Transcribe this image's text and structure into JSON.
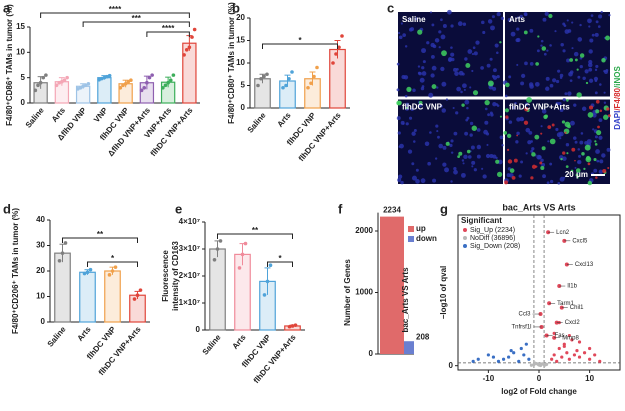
{
  "chart_data": [
    {
      "type": "bar",
      "panel": "a",
      "ylabel": "F4/80⁺CD86⁺ TAMs in tumor (%)",
      "categories": [
        "Saline",
        "Arts",
        "ΔflhD VNP",
        "VNP",
        "flhDC VNP",
        "ΔflhD VNP+Arts",
        "VNP+Arts",
        "flhDC VNP+Arts"
      ],
      "colors": [
        "#7f7f7f",
        "#f4a6b5",
        "#9ec3e6",
        "#4fa3d9",
        "#f0a04b",
        "#8e5fb0",
        "#3cae5a",
        "#e0453a"
      ],
      "values": [
        4,
        4.2,
        3.3,
        5,
        3.8,
        4,
        4.1,
        11.8
      ],
      "errors": [
        1.2,
        0.8,
        0.5,
        0.4,
        0.7,
        1.3,
        1,
        1.5
      ],
      "points": [
        [
          2.5,
          3.5,
          4,
          5,
          5.5
        ],
        [
          3.5,
          4,
          4.2,
          4.5,
          5
        ],
        [
          2.8,
          3,
          3.3,
          3.5,
          3.8
        ],
        [
          4.6,
          4.8,
          5,
          5.2,
          5.4
        ],
        [
          3,
          3.5,
          3.8,
          4.2,
          4.5
        ],
        [
          2.5,
          3,
          4,
          5,
          5.5
        ],
        [
          3,
          3.5,
          4,
          4.5,
          5.5
        ],
        [
          9.5,
          10.5,
          11,
          13,
          14.5
        ]
      ],
      "ylim": [
        0,
        15
      ],
      "yticks": [
        0,
        5,
        10,
        15
      ],
      "annotations": [
        "****",
        "***",
        "****"
      ]
    },
    {
      "type": "bar",
      "panel": "b",
      "ylabel": "F4/80⁺CD80⁺ TAMs in tumor (%)",
      "categories": [
        "Saline",
        "Arts",
        "flhDC VNP",
        "flhDC VNP+Arts"
      ],
      "colors": [
        "#7f7f7f",
        "#4fa3d9",
        "#f0a04b",
        "#e0453a"
      ],
      "values": [
        6.5,
        6,
        6.5,
        13
      ],
      "errors": [
        1,
        1.3,
        1.5,
        2
      ],
      "points": [
        [
          5,
          6.5,
          7,
          7.5
        ],
        [
          4.5,
          5,
          6.5,
          8
        ],
        [
          4.5,
          5.5,
          7,
          9
        ],
        [
          10,
          12,
          13.5,
          16
        ]
      ],
      "ylim": [
        0,
        20
      ],
      "yticks": [
        0,
        5,
        10,
        15,
        20
      ],
      "annotations": [
        "*"
      ]
    },
    {
      "type": "image",
      "panel": "c",
      "images": [
        "Saline",
        "Arts",
        "flhDC VNP",
        "flhDC VNP+Arts"
      ],
      "scale_bar": "20 μm",
      "stain_labels": [
        {
          "text": "DAPI",
          "color": "#3340c8"
        },
        {
          "text": "/F4/80",
          "color": "#d62c2c"
        },
        {
          "text": "/iNOS",
          "color": "#2aa84a"
        }
      ]
    },
    {
      "type": "bar",
      "panel": "d",
      "ylabel": "F4/80⁺CD206⁺ TAMs in tumor (%)",
      "categories": [
        "Saline",
        "Arts",
        "flhDC VNP",
        "flhDC VNP+Arts"
      ],
      "colors": [
        "#7f7f7f",
        "#4fa3d9",
        "#f0a04b",
        "#e0453a"
      ],
      "values": [
        27,
        19.5,
        20,
        10.5
      ],
      "errors": [
        3.5,
        1,
        1.5,
        1.5
      ],
      "points": [
        [
          24,
          27,
          31
        ],
        [
          19,
          19.5,
          20.5
        ],
        [
          18.5,
          20,
          21.5
        ],
        [
          9,
          10.5,
          12.5
        ]
      ],
      "ylim": [
        0,
        40
      ],
      "yticks": [
        0,
        10,
        20,
        30,
        40
      ],
      "annotations": [
        "**",
        "*"
      ]
    },
    {
      "type": "bar",
      "panel": "e",
      "ylabel": [
        "Fluorescence",
        "intensity of CD163"
      ],
      "categories": [
        "Saline",
        "Arts",
        "flhDC VNP",
        "flhDC VNP+Arts"
      ],
      "colors": [
        "#7f7f7f",
        "#f08a9a",
        "#4fa3d9",
        "#e0453a"
      ],
      "values": [
        30000000,
        28000000,
        18000000,
        1500000
      ],
      "errors": [
        3000000,
        4000000,
        5000000,
        300000
      ],
      "points": [
        [
          26000000,
          30000000,
          33000000
        ],
        [
          23000000,
          28000000,
          32000000
        ],
        [
          13000000,
          18000000,
          24000000
        ],
        [
          1200000,
          1500000,
          1800000
        ]
      ],
      "ylim": [
        0,
        40000000
      ],
      "yticks": [
        0,
        {
          "value": 10000000,
          "label": "1×10⁷"
        },
        {
          "value": 20000000,
          "label": "2×10⁷"
        },
        {
          "value": 30000000,
          "label": "3×10⁷"
        },
        {
          "value": 40000000,
          "label": "4×10⁷"
        }
      ],
      "annotations": [
        "**",
        "*"
      ]
    },
    {
      "type": "genes",
      "panel": "f",
      "ylabel": "Number of Genes",
      "categories": [
        "bac_Arts VS Arts"
      ],
      "series": [
        {
          "name": "up",
          "color": "#e06a6a",
          "values": [
            2234
          ]
        },
        {
          "name": "down",
          "color": "#6a7fd0",
          "values": [
            208
          ]
        }
      ],
      "ylim": [
        0,
        2000
      ],
      "yticks": [
        0,
        1000,
        2000
      ]
    },
    {
      "type": "scatter",
      "panel": "g",
      "title": "bac_Arts VS Arts",
      "xlabel": "log2 of Fold change",
      "ylabel": "−log10 of qval",
      "legend_title": "Significant",
      "series": [
        {
          "name": "Sig_Up (2234)",
          "color": "#e0485a",
          "x": [
            2.5,
            3,
            3.5,
            4,
            4.5,
            5,
            5.5,
            6,
            6.5,
            7,
            7.5,
            8,
            9,
            10,
            11,
            12,
            3,
            4,
            5,
            6,
            8,
            10
          ],
          "y": [
            3,
            5,
            2,
            8,
            4,
            10,
            6,
            3,
            12,
            5,
            7,
            4,
            6,
            3,
            5,
            2,
            15,
            20,
            9,
            14,
            11,
            8
          ]
        },
        {
          "name": "NoDiff (36896)",
          "color": "#b8b8b8",
          "x": [
            -1,
            -0.5,
            0,
            0.5,
            1,
            -1.5,
            1.5,
            -0.8,
            0.3,
            0.8,
            -0.2,
            1.2
          ],
          "y": [
            0.5,
            1,
            0.3,
            0.8,
            0.4,
            0.2,
            0.6,
            1.2,
            0.1,
            0.9,
            0.7,
            0.3
          ]
        },
        {
          "name": "Sig_Down (208)",
          "color": "#3a6fc4",
          "x": [
            -2,
            -3,
            -4,
            -5,
            -6,
            -7,
            -8,
            -9,
            -10,
            -12,
            -13,
            -3.5,
            -5.5,
            -2.5
          ],
          "y": [
            3,
            5,
            2,
            6,
            4,
            3,
            2,
            4,
            5,
            3,
            2,
            8,
            7,
            10
          ]
        }
      ],
      "genes": [
        {
          "name": "Lcn2",
          "x": 1.8,
          "y": 62
        },
        {
          "name": "Cxcl5",
          "x": 5,
          "y": 58
        },
        {
          "name": "Cxcl13",
          "x": 5.5,
          "y": 47
        },
        {
          "name": "Il1b",
          "x": 4,
          "y": 37
        },
        {
          "name": "Tarm1",
          "x": 2,
          "y": 29
        },
        {
          "name": "Chil1",
          "x": 4.5,
          "y": 27
        },
        {
          "name": "Ccl3",
          "x": 0.3,
          "y": 24
        },
        {
          "name": "Cxcl2",
          "x": 3.5,
          "y": 20
        },
        {
          "name": "Tnfrsf1l",
          "x": 0.5,
          "y": 18
        },
        {
          "name": "Fas",
          "x": 1.5,
          "y": 14
        },
        {
          "name": "Mmp8",
          "x": 3,
          "y": 13
        }
      ],
      "thresholds": {
        "x": [
          -1,
          1
        ],
        "y": 1.3
      },
      "xlim": [
        -16,
        16
      ],
      "ylim": [
        -2,
        70
      ],
      "xticks": [
        -10,
        0,
        10
      ],
      "yticks": [
        0
      ]
    }
  ]
}
